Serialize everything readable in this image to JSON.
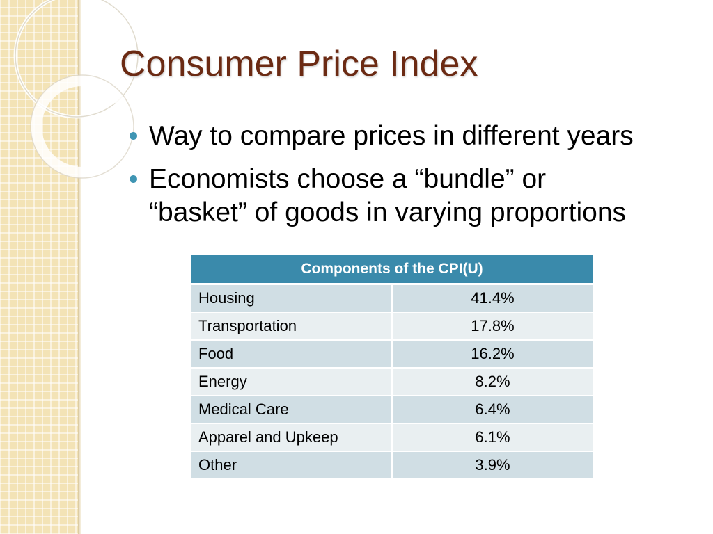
{
  "slide": {
    "title": "Consumer Price Index",
    "bullets": [
      "Way to compare prices in different years",
      "Economists choose a “bundle” or “basket” of goods in varying proportions"
    ]
  },
  "table": {
    "header": "Components of the CPI(U)",
    "rows": [
      {
        "category": "Housing",
        "share": "41.4%"
      },
      {
        "category": "Transportation",
        "share": "17.8%"
      },
      {
        "category": "Food",
        "share": "16.2%"
      },
      {
        "category": "Energy",
        "share": "8.2%"
      },
      {
        "category": "Medical Care",
        "share": "6.4%"
      },
      {
        "category": "Apparel and Upkeep",
        "share": "6.1%"
      },
      {
        "category": "Other",
        "share": "3.9%"
      }
    ]
  },
  "colors": {
    "title": "#6b2a13",
    "bullet": "#3f95b3",
    "table_header": "#3a8aab",
    "row_dark": "#d0dee4",
    "row_light": "#e9eff1",
    "strip": "#f3e3b6"
  }
}
